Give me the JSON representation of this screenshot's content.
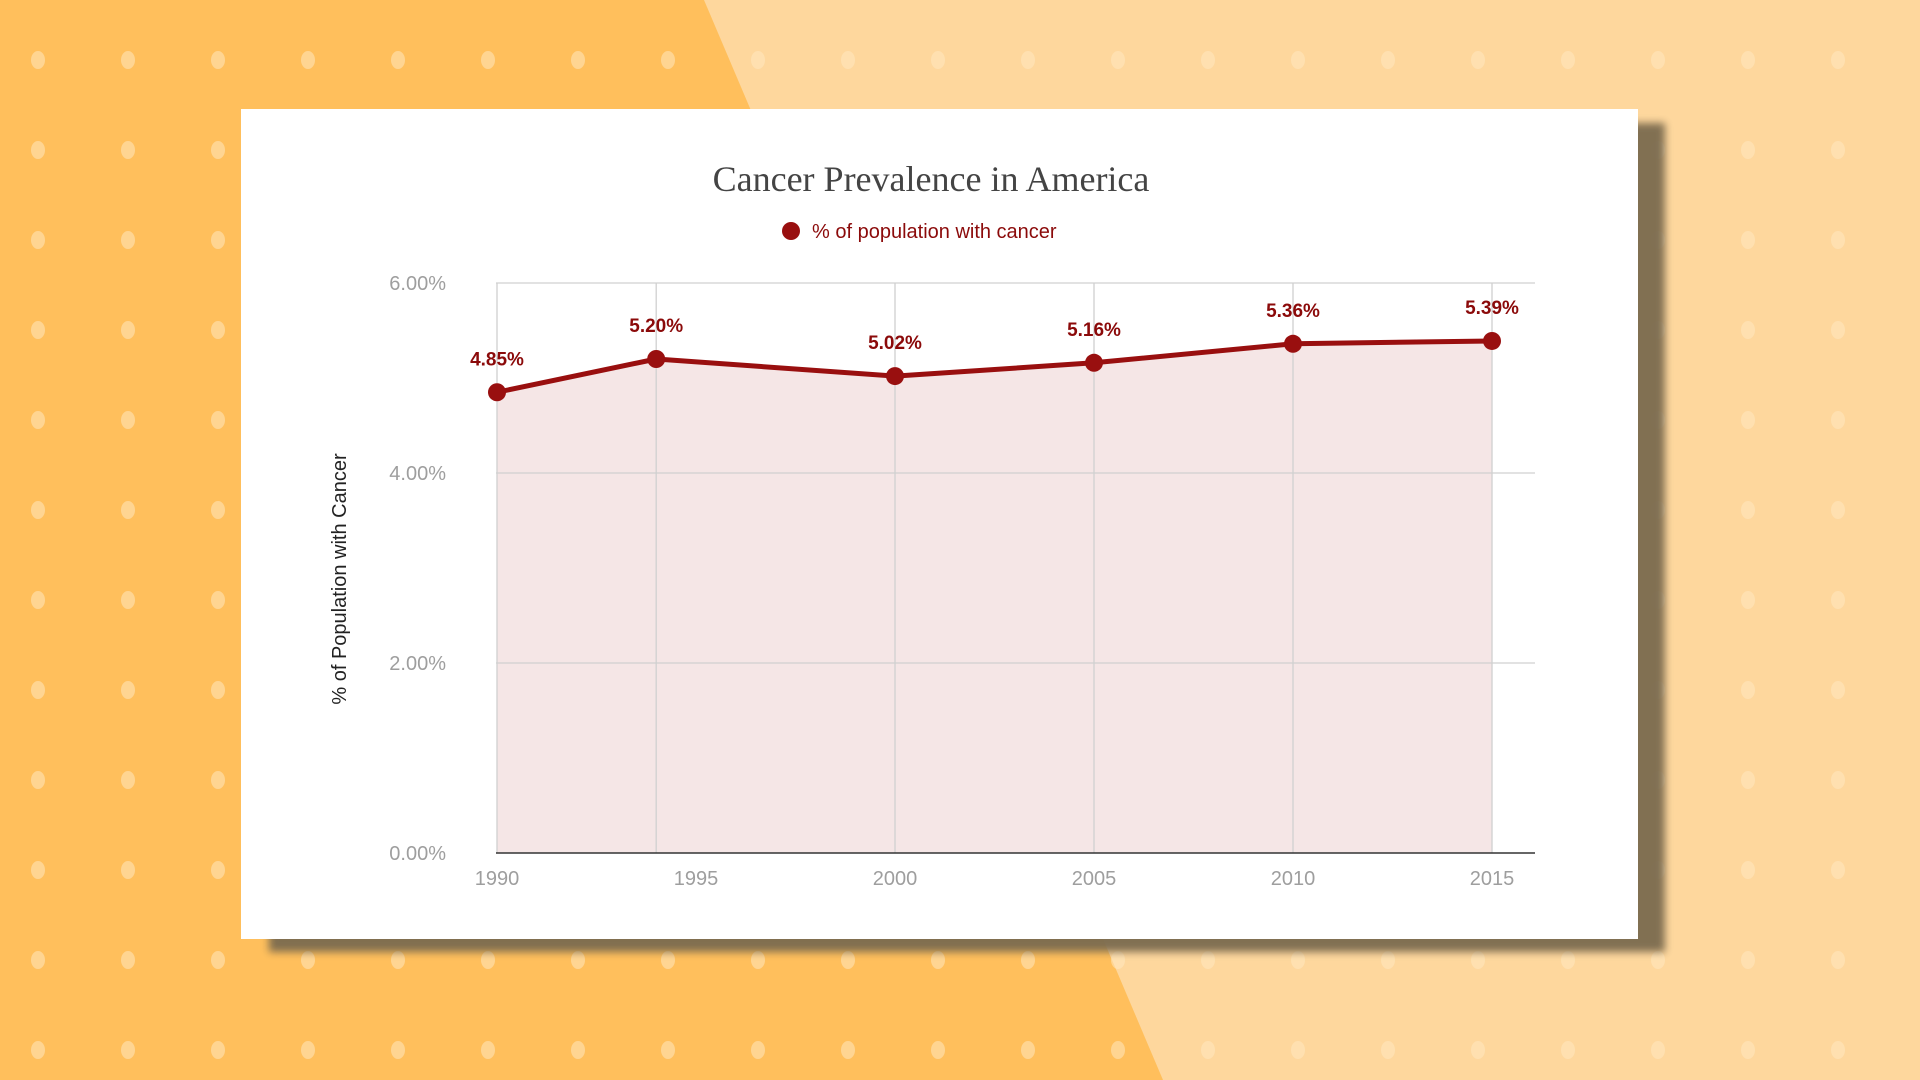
{
  "colors": {
    "background_left": "#ffbf5c",
    "background_right": "#fed79d",
    "dots": "#ffe6be",
    "series": "#990f0f",
    "area_fill": "#f5e6e6",
    "grid": "#d0d0d0",
    "axis": "#333333",
    "tick_text": "#9e9e9e",
    "title_text": "#444444"
  },
  "chart_data": {
    "type": "area",
    "title": "Cancer Prevalence in America",
    "xlabel": "",
    "ylabel": "% of Population with Cancer",
    "legend": {
      "position": "top",
      "entries": [
        "% of population with cancer"
      ]
    },
    "grid": true,
    "xlim": [
      1990,
      2015
    ],
    "ylim": [
      0,
      6
    ],
    "x_ticks": [
      1990,
      1995,
      2000,
      2005,
      2010,
      2015
    ],
    "x_tick_labels": [
      "1990",
      "1995",
      "2000",
      "2005",
      "2010",
      "2015"
    ],
    "y_ticks": [
      0,
      2,
      4,
      6
    ],
    "y_tick_labels": [
      "0.00%",
      "2.00%",
      "4.00%",
      "6.00%"
    ],
    "series": [
      {
        "name": "% of population with cancer",
        "x": [
          1990,
          1994,
          2000,
          2005,
          2010,
          2015
        ],
        "y": [
          4.85,
          5.2,
          5.02,
          5.16,
          5.36,
          5.39
        ],
        "labels": [
          "4.85%",
          "5.20%",
          "5.02%",
          "5.16%",
          "5.36%",
          "5.39%"
        ]
      }
    ]
  }
}
